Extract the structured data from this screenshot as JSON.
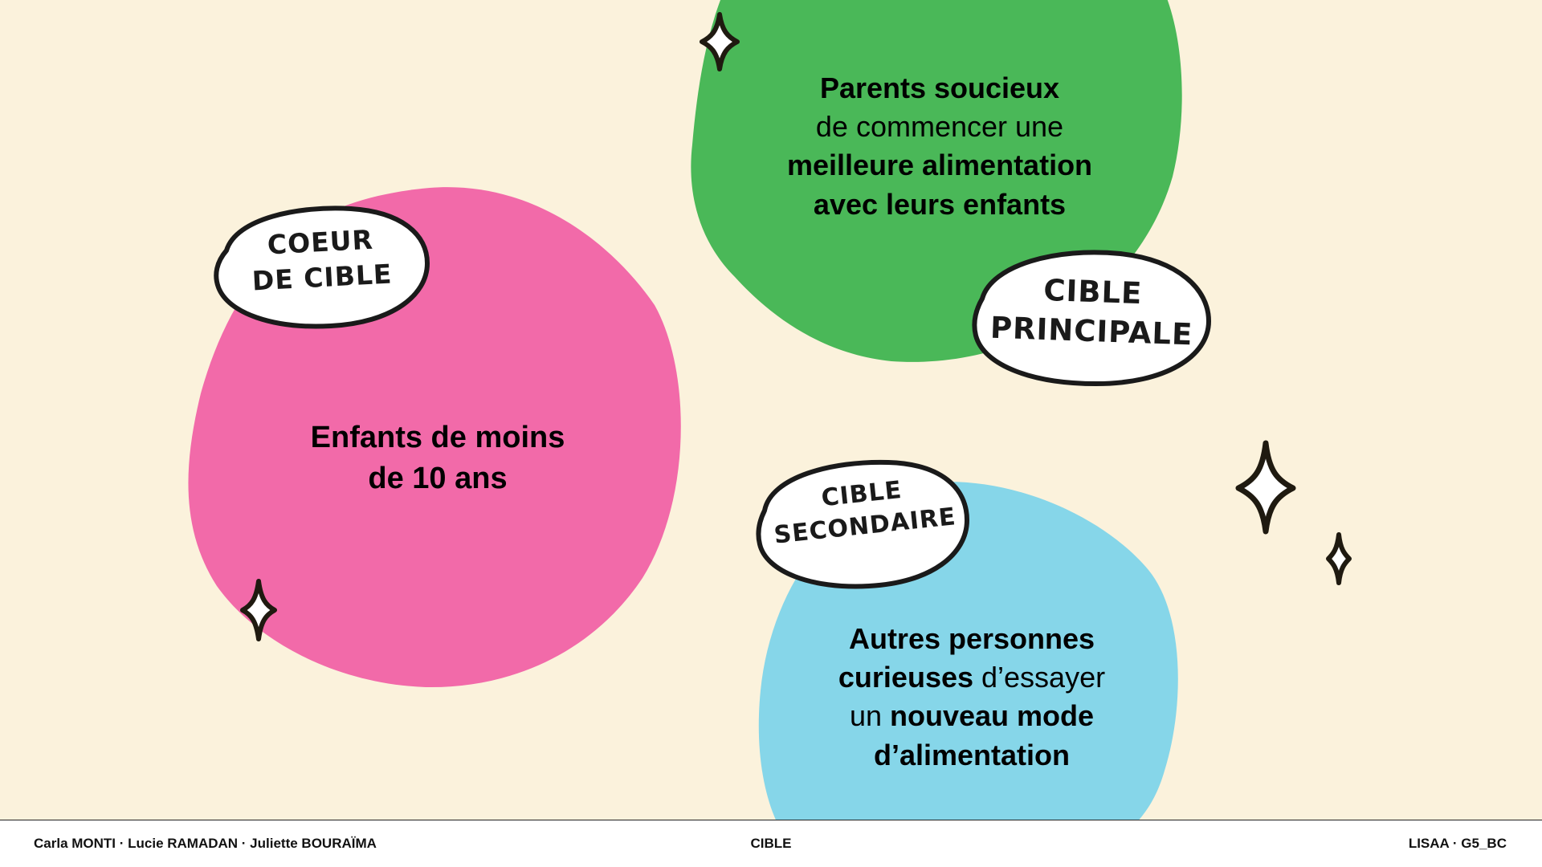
{
  "colors": {
    "background": "#FBF2DC",
    "pink": "#F26AA9",
    "green": "#4AB858",
    "blue": "#86D6E9",
    "badge_fill": "#FFFFFF",
    "outline": "#1a1a1a"
  },
  "pink_target": {
    "line1": "Enfants de moins",
    "line2": "de 10 ans",
    "badge_line1": "COEUR",
    "badge_line2": "DE CIBLE"
  },
  "green_target": {
    "line1": "Parents soucieux",
    "line2": "de commencer une",
    "line3": "meilleure alimentation",
    "line4": "avec leurs enfants",
    "badge_line1": "CIBLE",
    "badge_line2": "PRINCIPALE"
  },
  "blue_target": {
    "line1": "Autres personnes",
    "line2_bold": "curieuses",
    "line2_regular": " d’essayer",
    "line3_regular": "un ",
    "line3_bold": "nouveau mode",
    "line4": "d’alimentation",
    "badge_line1": "CIBLE",
    "badge_line2": "SECONDAIRE"
  },
  "decorations": {
    "sparkle_icon": "four-point-sparkle"
  },
  "footer": {
    "authors": "Carla MONTI · Lucie RAMADAN · Juliette BOURAÏMA",
    "title": "CIBLE",
    "school": "LISAA · G5_BC"
  }
}
